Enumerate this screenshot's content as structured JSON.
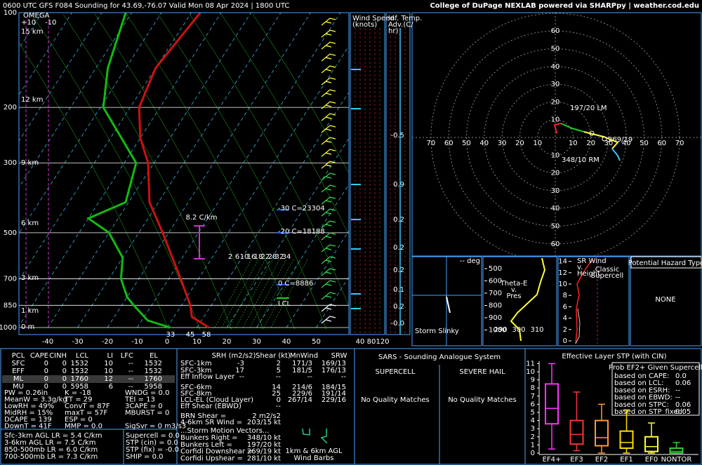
{
  "header": {
    "title": "0600 UTC GFS F084 Sounding for 43.69,-76.07 Valid  Mon 08 Apr 2024 | 1800 UTC",
    "credit": "College of DuPage NEXLAB powered via SHARPpy | weather.cod.edu"
  },
  "skewt": {
    "omega": {
      "title": "OMEGA",
      "left": "+10",
      "right": "-10"
    },
    "pressures": [
      100,
      200,
      300,
      500,
      700,
      850,
      1000
    ],
    "temps": [
      -40,
      -30,
      -20,
      -10,
      0,
      10,
      20,
      30,
      40,
      50
    ],
    "heights": [
      "15 km",
      "12 km",
      "9 km",
      "6 km",
      "3 km",
      "1 km",
      "0 m"
    ],
    "mixing_ratios": [
      2,
      6,
      10,
      16,
      18,
      22,
      28,
      32,
      34
    ],
    "lapse_note": "8.2 C/km",
    "levels": [
      "-30 C=23304",
      "-20 C=18188",
      "0 C=8886",
      "LCL"
    ],
    "surface": {
      "dewpoint": 33,
      "wetbulb": 45,
      "temperature": 58
    },
    "temperature": {
      "p": [
        1000,
        925,
        850,
        700,
        500,
        400,
        300,
        250,
        200,
        150,
        100
      ],
      "t": [
        14,
        6,
        3,
        -6,
        -22,
        -33,
        -42,
        -50,
        -57,
        -60,
        -57
      ]
    },
    "dewpoint": {
      "p": [
        1000,
        950,
        850,
        800,
        700,
        600,
        500,
        450,
        400,
        300,
        200,
        150,
        100
      ],
      "t": [
        1,
        -8,
        -16,
        -20,
        -26,
        -30,
        -40,
        -50,
        -41,
        -46,
        -69,
        -76,
        -82
      ]
    }
  },
  "winds": {
    "speed_title": [
      "Wind Speed",
      "(knots)"
    ],
    "adv_title": [
      "Inf. Temp.",
      "Adv.(C/",
      "hr)"
    ],
    "speeds": [
      40,
      80,
      120
    ],
    "adv_values": [
      "-0.5",
      "0.9",
      "0.2",
      "0.2",
      "0.2",
      "0.1",
      "0.2",
      "-0.0"
    ]
  },
  "hodograph": {
    "rings": [
      10,
      20,
      30,
      40,
      50,
      60,
      70
    ],
    "labels": [
      "197/20 LM",
      "348/10 RM",
      "269/19"
    ]
  },
  "slinky": {
    "deg": "-- deg",
    "title": "Storm Slinky"
  },
  "theta_e": {
    "title": [
      "Theta-E",
      "v.",
      "Pres"
    ],
    "pressures": [
      500,
      600,
      700,
      800,
      900,
      1000
    ],
    "temps": [
      290,
      300,
      310
    ]
  },
  "sr_wind": {
    "title": [
      "SR Wind",
      "v.",
      "Height"
    ],
    "heights": [
      0,
      2,
      4,
      6,
      8,
      10,
      12,
      14
    ],
    "note": [
      "Classic",
      "Supercell"
    ]
  },
  "hazard": {
    "title": "Potential Hazard Type",
    "value": "NONE"
  },
  "parcels": {
    "header": [
      "PCL",
      "CAPE",
      "CINH",
      "LCL",
      "LI",
      "LFC",
      "EL"
    ],
    "rows": [
      [
        "SFC",
        0,
        0,
        1532,
        10,
        "--",
        1532
      ],
      [
        "EFF",
        0,
        0,
        1532,
        10,
        "--",
        1532
      ],
      [
        "ML",
        0,
        0,
        1760,
        12,
        "--",
        1760
      ],
      [
        "MU",
        0,
        0,
        5958,
        6,
        "--",
        5958
      ]
    ]
  },
  "indices": [
    [
      "PW = 0.26in",
      "K = -18",
      "WNDG = 0.0"
    ],
    [
      "MeanW = 3.3g/kg",
      "TT = 29",
      "TEI = 13"
    ],
    [
      "LowRH = 49%",
      "ConvT = 87F",
      "3CAPE = 0"
    ],
    [
      "MidRH = 15%",
      "maxT = 57F",
      "MBURST = 0"
    ],
    [
      "DCAPE = 139",
      "ESP = 0"
    ],
    [
      "DownT = 41F",
      "MMP = 0.0",
      "SigSvr = 0 m3/s3"
    ]
  ],
  "lapse_rates": [
    "Sfc-3km AGL LR = 5.4 C/km",
    "3-6km AGL LR = 7.5 C/km",
    "850-500mb LR = 6.0 C/km",
    "700-500mb LR = 7.3 C/km"
  ],
  "composites": [
    "Supercell = 0.0",
    "STP (cin) = 0.0",
    "STP (fix) = -0.0",
    "SHIP = 0.0"
  ],
  "kinematics": {
    "header": {
      "srh": "SRH (m2/s2)",
      "shear": "Shear (kt)",
      "mnwind": "MnWind",
      "srw": "SRW"
    },
    "rows": [
      {
        "label": "SFC-1km",
        "srh": -3,
        "shear": 2,
        "mnwind": "171/3",
        "srw": "169/13"
      },
      {
        "label": "SFC-3km",
        "srh": 17,
        "shear": 5,
        "mnwind": "181/5",
        "srw": "176/13"
      },
      {
        "label": "Eff Inflow Layer",
        "srh": "--",
        "shear": "--",
        "mnwind": "--",
        "srw": "--"
      },
      {
        "label": "SFC-6km",
        "shear": 14,
        "mnwind": "214/6",
        "srw": "184/15"
      },
      {
        "label": "SFC-8km",
        "shear": 25,
        "mnwind": "229/6",
        "srw": "191/14"
      },
      {
        "label": "LCL-EL (Cloud Layer)",
        "shear": 0,
        "mnwind": "267/14",
        "srw": "229/16"
      },
      {
        "label": "Eff Shear (EBWD)",
        "shear": "--"
      }
    ],
    "extra": [
      {
        "label": "BRN Shear =",
        "value": "2 m2/s2"
      },
      {
        "label": "4-6km SR Wind =",
        "value": "203/15 kt"
      }
    ],
    "motion_title": "...Storm Motion Vectors...",
    "motion": [
      {
        "label": "Bunkers Right =",
        "value": "348/10 kt"
      },
      {
        "label": "Bunkers Left =",
        "value": "197/20 kt"
      },
      {
        "label": "Corfidi Downshear =",
        "value": "269/19 kt"
      },
      {
        "label": "Corfidi Upshear =",
        "value": "281/10 kt"
      }
    ],
    "barb_note": [
      "1km & 6km AGL",
      "Wind Barbs"
    ]
  },
  "sars": {
    "title": "SARS - Sounding Analogue System",
    "supercell": "SUPERCELL",
    "hail": "SEVERE HAIL",
    "supercell_result": "No Quality Matches",
    "hail_result": "No Quality Matches"
  },
  "stp": {
    "title": "Effective Layer STP (with CIN)",
    "yticks": [
      0,
      1,
      2,
      3,
      4,
      5,
      6,
      7,
      8,
      9,
      10,
      11
    ],
    "categories": [
      "EF4+",
      "EF3",
      "EF2",
      "EF1",
      "EF0",
      "NONTOR"
    ],
    "boxes": [
      {
        "low": 0.5,
        "q1": 3.6,
        "median": 5.5,
        "q3": 8.5,
        "high": 11,
        "color": "#ff33ff"
      },
      {
        "low": 0.3,
        "q1": 1.1,
        "median": 2.3,
        "q3": 4,
        "high": 7.5,
        "color": "#ff3333"
      },
      {
        "low": 0,
        "q1": 0.9,
        "median": 1.9,
        "q3": 4,
        "high": 6,
        "color": "#ff9933"
      },
      {
        "low": 0,
        "q1": 0.6,
        "median": 1.3,
        "q3": 2.7,
        "high": 5.3,
        "color": "#ffdd00"
      },
      {
        "low": 0,
        "q1": 0.2,
        "median": 0.8,
        "q3": 2,
        "high": 3.7,
        "color": "#ffff33"
      },
      {
        "low": 0,
        "q1": 0,
        "median": 0.2,
        "q3": 0.6,
        "high": 1.3,
        "color": "#33cc33"
      }
    ],
    "prob": {
      "title": "Prob EF2+ Given Supercell",
      "rows": [
        [
          "based on CAPE:",
          "0.0"
        ],
        [
          "based on LCL:",
          "0.06"
        ],
        [
          "based on ESRH:",
          "--"
        ],
        [
          "based on EBWD:",
          "--"
        ],
        [
          "based on STPC:",
          "0.06"
        ],
        [
          "based on STP_fixed:",
          "0.05"
        ]
      ]
    }
  }
}
